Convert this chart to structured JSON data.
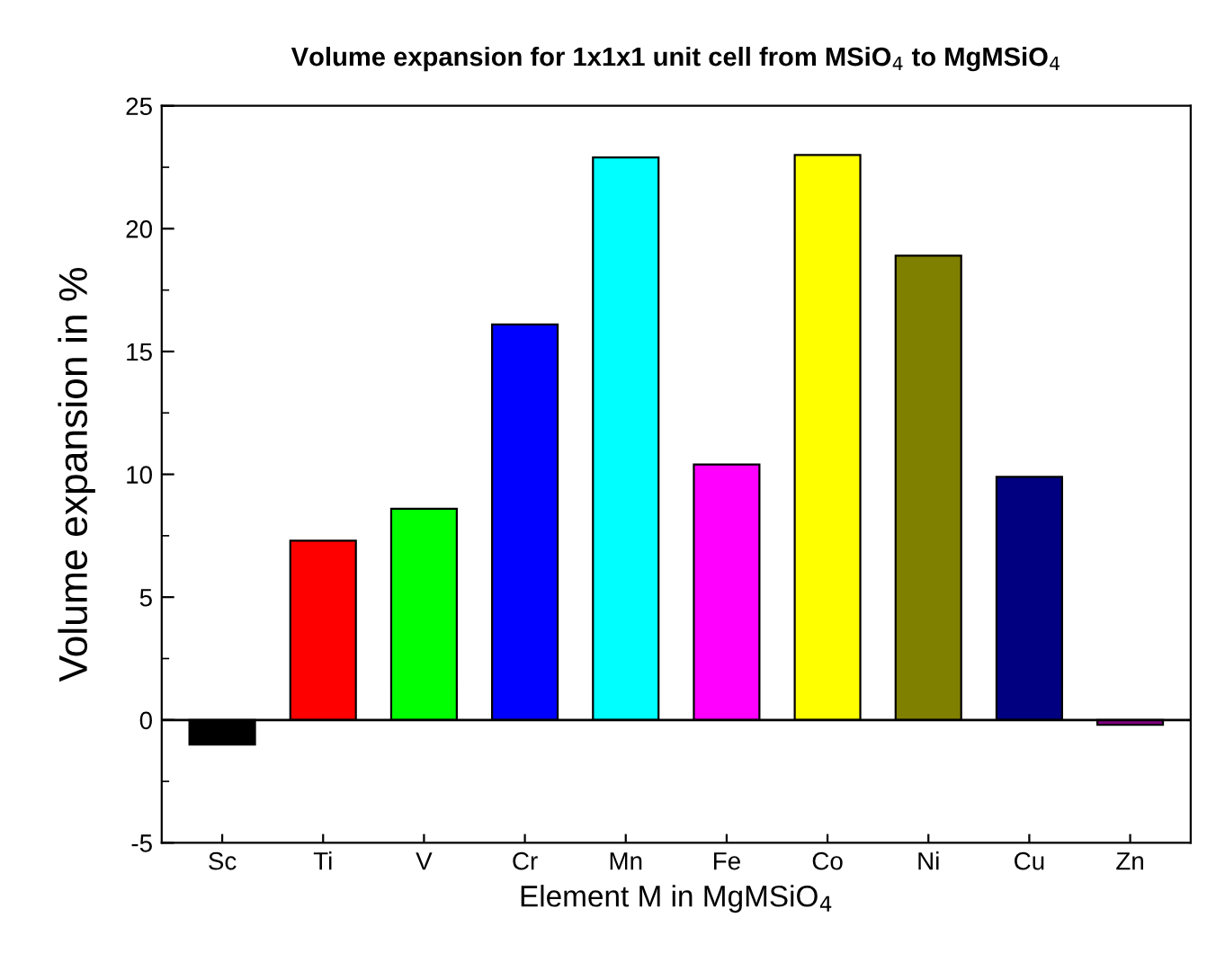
{
  "chart_data": {
    "type": "bar",
    "title": "Volume expansion for 1x1x1 unit cell from MSiO$_{4}$ to MgMSiO$_{4}$",
    "xlabel": "Element M in MgMSiO$_{4}$",
    "ylabel": "Volume expansion in %",
    "categories": [
      "Sc",
      "Ti",
      "V",
      "Cr",
      "Mn",
      "Fe",
      "Co",
      "Ni",
      "Cu",
      "Zn"
    ],
    "values": [
      -1.0,
      7.3,
      8.6,
      16.1,
      22.9,
      10.4,
      23.0,
      18.9,
      9.9,
      -0.2
    ],
    "colors": [
      "#000000",
      "#ff0000",
      "#00ff00",
      "#0000ff",
      "#00ffff",
      "#ff00ff",
      "#ffff00",
      "#808000",
      "#000080",
      "#800080"
    ],
    "ylim": [
      -5,
      25
    ],
    "yticks": [
      -5,
      0,
      5,
      10,
      15,
      20,
      25
    ],
    "ref_lines": [
      {
        "axis": "y",
        "value": 0,
        "color": "#000000"
      }
    ],
    "grid": false,
    "legend": false
  }
}
